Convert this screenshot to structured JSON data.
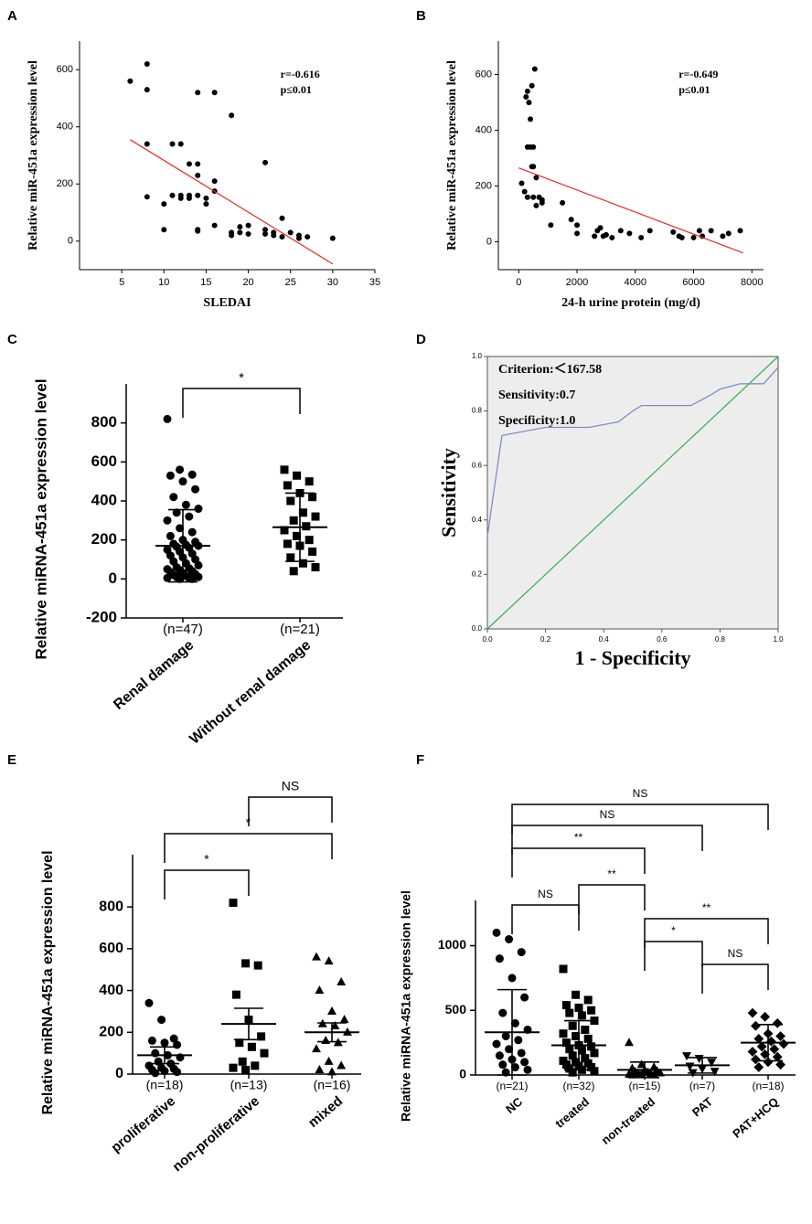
{
  "chart_data": [
    {
      "type": "scatter",
      "label": "A",
      "xlabel": "SLEDAI",
      "ylabel": "Relative miR-451a expression level",
      "xlim": [
        0,
        35
      ],
      "ylim": [
        -100,
        700
      ],
      "xticks": [
        5,
        10,
        15,
        20,
        25,
        30,
        35
      ],
      "yticks": [
        0,
        200,
        400,
        600
      ],
      "x": [
        6,
        8,
        8,
        8,
        8,
        10,
        10,
        11,
        11,
        12,
        12,
        12,
        13,
        13,
        13,
        14,
        14,
        14,
        14,
        14,
        14,
        15,
        15,
        16,
        16,
        16,
        16,
        18,
        18,
        18,
        19,
        19,
        20,
        20,
        22,
        22,
        22,
        23,
        23,
        24,
        24,
        25,
        26,
        26,
        27,
        30
      ],
      "y": [
        560,
        620,
        530,
        340,
        155,
        130,
        40,
        340,
        160,
        340,
        160,
        150,
        270,
        160,
        150,
        520,
        270,
        230,
        160,
        40,
        35,
        150,
        130,
        520,
        210,
        175,
        55,
        440,
        30,
        20,
        50,
        30,
        55,
        25,
        275,
        40,
        25,
        30,
        20,
        80,
        15,
        30,
        20,
        10,
        15,
        10
      ],
      "color": "#000000",
      "fit": {
        "x": [
          6,
          30
        ],
        "y": [
          355,
          -80
        ],
        "color": "#e8281e"
      },
      "annotations": [
        "r=-0.616",
        "p≤0.01"
      ]
    },
    {
      "type": "scatter",
      "label": "B",
      "xlabel": "24-h urine protein (mg/d)",
      "ylabel": "Relative miR-451a expression level",
      "xlim": [
        -700,
        8400
      ],
      "ylim": [
        -100,
        720
      ],
      "xticks": [
        0,
        2000,
        4000,
        6000,
        8000
      ],
      "yticks": [
        0,
        200,
        400,
        600
      ],
      "x": [
        100,
        200,
        250,
        300,
        300,
        300,
        350,
        400,
        400,
        450,
        450,
        500,
        500,
        500,
        550,
        600,
        600,
        700,
        800,
        800,
        1100,
        1500,
        1800,
        2000,
        2000,
        2600,
        2700,
        2800,
        2900,
        3000,
        3200,
        3500,
        3800,
        4200,
        4500,
        5300,
        5500,
        5600,
        6000,
        6200,
        6300,
        6600,
        7000,
        7200,
        7600
      ],
      "y": [
        210,
        180,
        520,
        540,
        340,
        160,
        500,
        440,
        340,
        560,
        270,
        340,
        270,
        160,
        620,
        230,
        130,
        160,
        150,
        140,
        60,
        140,
        80,
        30,
        60,
        20,
        40,
        50,
        20,
        25,
        15,
        40,
        30,
        15,
        40,
        35,
        20,
        15,
        15,
        40,
        20,
        40,
        20,
        30,
        40
      ],
      "color": "#000000",
      "fit": {
        "x": [
          0,
          7700
        ],
        "y": [
          265,
          -40
        ],
        "color": "#e8281e"
      },
      "annotations": [
        "r=-0.649",
        "p≤0.01"
      ]
    },
    {
      "type": "dot",
      "label": "C",
      "ylabel": "Relative miRNA-451a expression level",
      "ylim": [
        -200,
        1000
      ],
      "yticks": [
        -200,
        0,
        200,
        400,
        600,
        800
      ],
      "groups": [
        {
          "name": "Renal damage",
          "n_label": "(n=47)",
          "marker": "circle",
          "mean": 170,
          "error": 185,
          "values": [
            820,
            560,
            535,
            530,
            500,
            460,
            420,
            380,
            360,
            340,
            320,
            300,
            260,
            240,
            220,
            200,
            190,
            180,
            175,
            170,
            165,
            160,
            150,
            140,
            130,
            120,
            110,
            100,
            90,
            80,
            70,
            60,
            55,
            50,
            45,
            40,
            35,
            30,
            25,
            20,
            15,
            10,
            10,
            5,
            5,
            0,
            0
          ]
        },
        {
          "name": "Without renal damage",
          "n_label": "(n=21)",
          "marker": "square",
          "mean": 265,
          "error": 175,
          "values": [
            560,
            530,
            500,
            480,
            440,
            420,
            400,
            340,
            320,
            300,
            270,
            250,
            220,
            200,
            180,
            170,
            140,
            110,
            80,
            60,
            40
          ]
        }
      ],
      "brackets": [
        {
          "from": 0,
          "to": 1,
          "label": "*"
        }
      ]
    },
    {
      "type": "line",
      "label": "D",
      "xlabel": "1 - Specificity",
      "ylabel": "Sensitivity",
      "xlim": [
        0,
        1
      ],
      "ylim": [
        0,
        1
      ],
      "xticks": [
        {
          "value": 0,
          "label": "0.0"
        },
        {
          "value": 0.2,
          "label": "0.2"
        },
        {
          "value": 0.4,
          "label": "0.4"
        },
        {
          "value": 0.6,
          "label": "0.6"
        },
        {
          "value": 0.8,
          "label": "0.8"
        },
        {
          "value": 1,
          "label": "1.0"
        }
      ],
      "yticks": [
        {
          "value": 0,
          "label": "0.0"
        },
        {
          "value": 0.2,
          "label": "0.2"
        },
        {
          "value": 0.4,
          "label": "0.4"
        },
        {
          "value": 0.6,
          "label": "0.6"
        },
        {
          "value": 0.8,
          "label": "0.8"
        },
        {
          "value": 1,
          "label": "1.0"
        }
      ],
      "x": [
        0,
        0.05,
        0.2,
        0.35,
        0.45,
        0.5,
        0.53,
        0.7,
        0.77,
        0.8,
        0.87,
        0.95,
        1
      ],
      "y": [
        0.34,
        0.71,
        0.74,
        0.74,
        0.76,
        0.8,
        0.82,
        0.82,
        0.86,
        0.88,
        0.9,
        0.9,
        0.96
      ],
      "color": "#7b8ec8",
      "reference": {
        "x": [
          0,
          1
        ],
        "y": [
          0,
          1
        ],
        "color": "#2db34a"
      },
      "annotations": [
        "Criterion:＜167.58",
        "Sensitivity:0.7",
        "Specificity:1.0"
      ]
    },
    {
      "type": "dot",
      "label": "E",
      "ylabel": "Relative miRNA-451a expression level",
      "ylim": [
        0,
        1050
      ],
      "yticks": [
        0,
        200,
        400,
        600,
        800
      ],
      "groups": [
        {
          "name": "proliferative",
          "n_label": "(n=18)",
          "marker": "circle",
          "mean": 90,
          "error": 40,
          "values": [
            340,
            260,
            170,
            160,
            150,
            140,
            100,
            90,
            80,
            60,
            50,
            40,
            30,
            25,
            20,
            15,
            10,
            5
          ]
        },
        {
          "name": "non-proliferative",
          "n_label": "(n=13)",
          "marker": "square",
          "mean": 240,
          "error": 75,
          "values": [
            820,
            530,
            520,
            380,
            260,
            180,
            150,
            130,
            100,
            60,
            40,
            30,
            20
          ]
        },
        {
          "name": "mixed",
          "n_label": "(n=16)",
          "marker": "triangle",
          "mean": 200,
          "error": 45,
          "values": [
            560,
            540,
            440,
            400,
            300,
            260,
            240,
            230,
            200,
            160,
            150,
            120,
            60,
            40,
            20,
            10
          ]
        }
      ],
      "brackets": [
        {
          "from": 0,
          "to": 1,
          "label": "*"
        },
        {
          "from": 0,
          "to": 2,
          "label": "*"
        },
        {
          "from": 1,
          "to": 2,
          "label": "NS"
        }
      ]
    },
    {
      "type": "dot",
      "label": "F",
      "ylabel": "Relative miRNA-451a expression level",
      "ylim": [
        0,
        1350
      ],
      "yticks": [
        0,
        500,
        1000
      ],
      "groups": [
        {
          "name": "NC",
          "n_label": "(n=21)",
          "marker": "circle",
          "mean": 330,
          "error": 330,
          "values": [
            1100,
            1050,
            950,
            900,
            750,
            600,
            480,
            400,
            350,
            300,
            270,
            240,
            200,
            170,
            150,
            120,
            100,
            80,
            60,
            40,
            20
          ]
        },
        {
          "name": "treated",
          "n_label": "(n=32)",
          "marker": "square",
          "mean": 230,
          "error": 190,
          "values": [
            820,
            620,
            580,
            540,
            520,
            500,
            480,
            460,
            420,
            380,
            350,
            320,
            300,
            280,
            250,
            230,
            220,
            200,
            190,
            170,
            150,
            130,
            110,
            100,
            90,
            80,
            70,
            60,
            50,
            40,
            30,
            20
          ]
        },
        {
          "name": "non-treated",
          "n_label": "(n=15)",
          "marker": "triangle",
          "mean": 40,
          "error": 60,
          "values": [
            250,
            80,
            60,
            50,
            40,
            30,
            25,
            20,
            15,
            10,
            10,
            5,
            5,
            0,
            0
          ]
        },
        {
          "name": "PAT",
          "n_label": "(n=7)",
          "marker": "inverted-triangle",
          "mean": 75,
          "error": 60,
          "values": [
            150,
            130,
            100,
            70,
            50,
            30,
            20
          ]
        },
        {
          "name": "PAT+HCQ",
          "n_label": "(n=18)",
          "marker": "diamond",
          "mean": 250,
          "error": 140,
          "values": [
            480,
            450,
            400,
            380,
            320,
            300,
            280,
            260,
            240,
            220,
            200,
            180,
            160,
            140,
            120,
            100,
            80,
            60
          ]
        }
      ],
      "brackets": [
        {
          "from": 0,
          "to": 1,
          "label": "NS"
        },
        {
          "from": 1,
          "to": 2,
          "label": "**"
        },
        {
          "from": 0,
          "to": 2,
          "label": "**"
        },
        {
          "from": 0,
          "to": 3,
          "label": "NS"
        },
        {
          "from": 0,
          "to": 4,
          "label": "NS"
        },
        {
          "from": 2,
          "to": 4,
          "label": "**"
        },
        {
          "from": 2,
          "to": 3,
          "label": "*"
        },
        {
          "from": 3,
          "to": 4,
          "label": "NS"
        }
      ]
    }
  ]
}
